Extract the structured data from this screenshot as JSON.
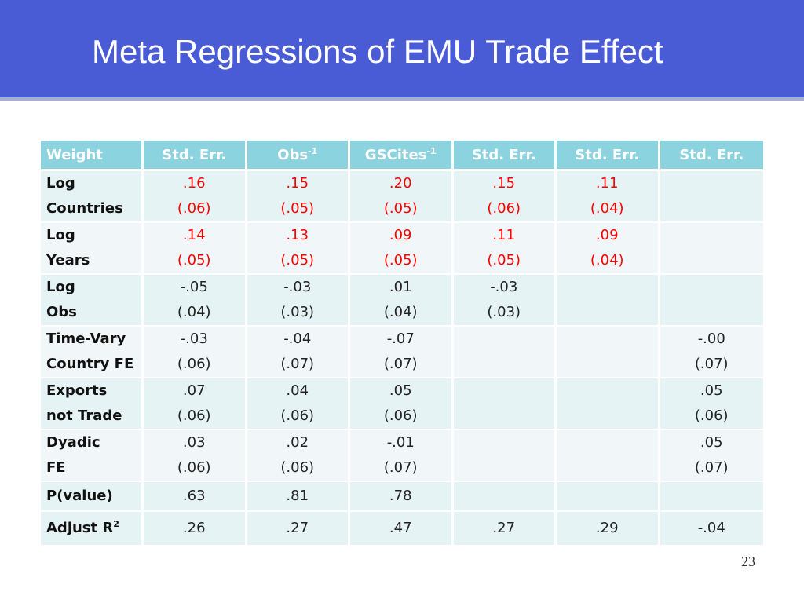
{
  "title": "Meta Regressions of EMU Trade Effect",
  "table": {
    "headers": [
      {
        "text": "Weight",
        "sup": ""
      },
      {
        "text": "Std. Err.",
        "sup": ""
      },
      {
        "text": "Obs",
        "sup": "-1"
      },
      {
        "text": "GSCites",
        "sup": "-1"
      },
      {
        "text": "Std. Err.",
        "sup": ""
      },
      {
        "text": "Std. Err.",
        "sup": ""
      },
      {
        "text": "Std. Err.",
        "sup": ""
      }
    ],
    "rows": [
      {
        "label": [
          "Log",
          "Countries"
        ],
        "cells": [
          {
            "coef": ".16",
            "se": "(.06)",
            "highlight": true
          },
          {
            "coef": ".15",
            "se": "(.05)",
            "highlight": true
          },
          {
            "coef": ".20",
            "se": "(.05)",
            "highlight": true
          },
          {
            "coef": ".15",
            "se": "(.06)",
            "highlight": true
          },
          {
            "coef": ".11",
            "se": "(.04)",
            "highlight": true
          },
          {
            "coef": "",
            "se": "",
            "highlight": false
          }
        ]
      },
      {
        "label": [
          "Log",
          "Years"
        ],
        "cells": [
          {
            "coef": ".14",
            "se": "(.05)",
            "highlight": true
          },
          {
            "coef": ".13",
            "se": "(.05)",
            "highlight": true
          },
          {
            "coef": ".09",
            "se": "(.05)",
            "highlight": true
          },
          {
            "coef": ".11",
            "se": "(.05)",
            "highlight": true
          },
          {
            "coef": ".09",
            "se": "(.04)",
            "highlight": true
          },
          {
            "coef": "",
            "se": "",
            "highlight": false
          }
        ]
      },
      {
        "label": [
          "Log",
          "Obs"
        ],
        "cells": [
          {
            "coef": "-.05",
            "se": "(.04)",
            "highlight": false
          },
          {
            "coef": "-.03",
            "se": "(.03)",
            "highlight": false
          },
          {
            "coef": ".01",
            "se": "(.04)",
            "highlight": false
          },
          {
            "coef": "-.03",
            "se": "(.03)",
            "highlight": false
          },
          {
            "coef": "",
            "se": "",
            "highlight": false
          },
          {
            "coef": "",
            "se": "",
            "highlight": false
          }
        ]
      },
      {
        "label": [
          "Time-Vary",
          "Country FE"
        ],
        "cells": [
          {
            "coef": "-.03",
            "se": "(.06)",
            "highlight": false
          },
          {
            "coef": "-.04",
            "se": "(.07)",
            "highlight": false
          },
          {
            "coef": "-.07",
            "se": "(.07)",
            "highlight": false
          },
          {
            "coef": "",
            "se": "",
            "highlight": false
          },
          {
            "coef": "",
            "se": "",
            "highlight": false
          },
          {
            "coef": "-.00",
            "se": "(.07)",
            "highlight": false
          }
        ]
      },
      {
        "label": [
          "Exports",
          "not Trade"
        ],
        "cells": [
          {
            "coef": ".07",
            "se": "(.06)",
            "highlight": false
          },
          {
            "coef": ".04",
            "se": "(.06)",
            "highlight": false
          },
          {
            "coef": ".05",
            "se": "(.06)",
            "highlight": false
          },
          {
            "coef": "",
            "se": "",
            "highlight": false
          },
          {
            "coef": "",
            "se": "",
            "highlight": false
          },
          {
            "coef": ".05",
            "se": "(.06)",
            "highlight": false
          }
        ]
      },
      {
        "label": [
          "Dyadic",
          "FE"
        ],
        "cells": [
          {
            "coef": ".03",
            "se": "(.06)",
            "highlight": false
          },
          {
            "coef": ".02",
            "se": "(.06)",
            "highlight": false
          },
          {
            "coef": "-.01",
            "se": "(.07)",
            "highlight": false
          },
          {
            "coef": "",
            "se": "",
            "highlight": false
          },
          {
            "coef": "",
            "se": "",
            "highlight": false
          },
          {
            "coef": ".05",
            "se": "(.07)",
            "highlight": false
          }
        ]
      },
      {
        "label": [
          "P(value)"
        ],
        "cells": [
          {
            "coef": ".63",
            "se": "",
            "highlight": false
          },
          {
            "coef": ".81",
            "se": "",
            "highlight": false
          },
          {
            "coef": ".78",
            "se": "",
            "highlight": false
          },
          {
            "coef": "",
            "se": "",
            "highlight": false
          },
          {
            "coef": "",
            "se": "",
            "highlight": false
          },
          {
            "coef": "",
            "se": "",
            "highlight": false
          }
        ]
      }
    ],
    "adjusted_r2": {
      "label": "Adjust R",
      "label_sup": "2",
      "values": [
        ".26",
        ".27",
        ".47",
        ".27",
        ".29",
        "-.04"
      ]
    }
  },
  "colors": {
    "title_bar": "#4a5bd6",
    "header_fill": "#8bd3de",
    "significant_text": "#ff0000"
  },
  "page_number": "23"
}
